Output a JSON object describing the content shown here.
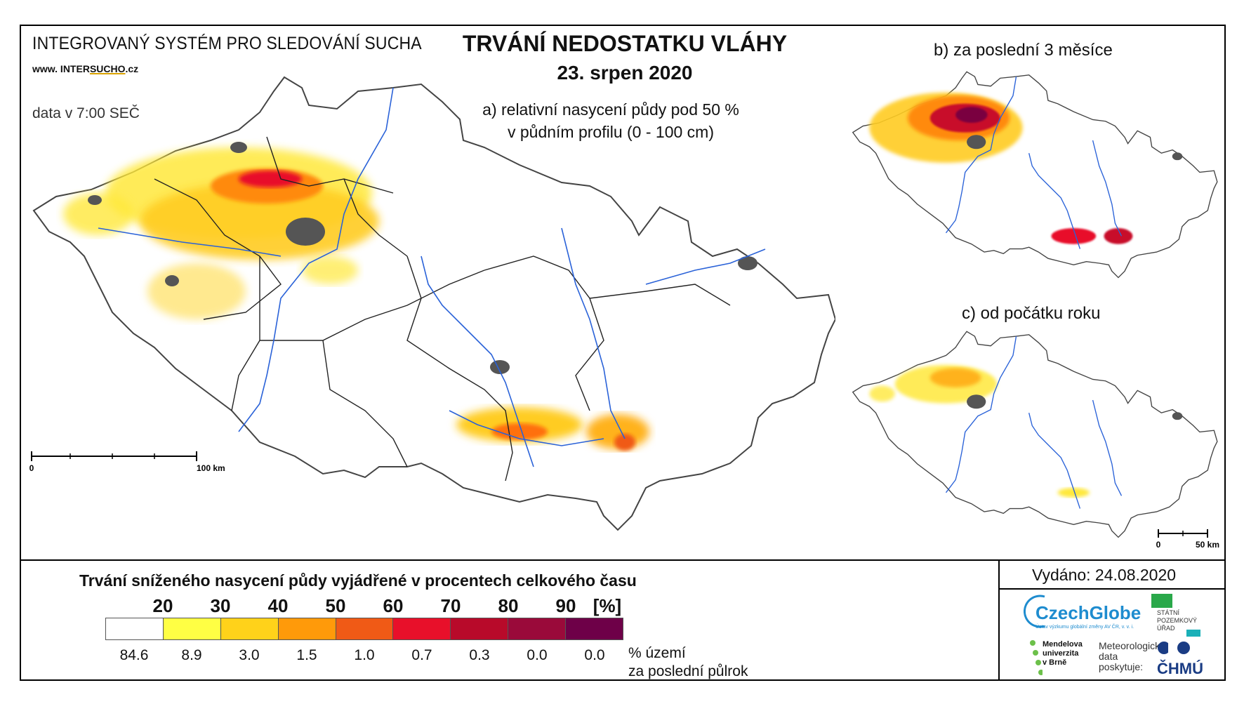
{
  "header": {
    "system_title": "INTEGROVANÝ SYSTÉM PRO SLEDOVÁNÍ SUCHA",
    "url_prefix": "www. INTER",
    "url_brand": "SUCHO",
    "url_suffix": ".cz",
    "data_time": "data v 7:00 SEČ",
    "main_title": "TRVÁNÍ NEDOSTATKU VLÁHY",
    "date": "23. srpen 2020"
  },
  "maps": {
    "a": {
      "caption_line1": "a) relativní nasycení půdy pod 50 %",
      "caption_line2": "v půdním profilu (0 - 100 cm)",
      "scale_start": "0",
      "scale_end": "100 km"
    },
    "b": {
      "caption": "b) za poslední 3 měsíce"
    },
    "c": {
      "caption": "c) od počátku roku",
      "scale_start": "0",
      "scale_end": "50 km"
    }
  },
  "legend": {
    "title": "Trvání sníženého nasycení půdy vyjádřené v procentech celkového času",
    "thresholds": [
      "20",
      "30",
      "40",
      "50",
      "60",
      "70",
      "80",
      "90",
      "[%]"
    ],
    "colors": [
      "#ffffff",
      "#ffff44",
      "#ffd21a",
      "#ff9a0a",
      "#f05a16",
      "#e8102a",
      "#b80a2a",
      "#9a0a3a",
      "#6e0048"
    ],
    "area_values": [
      "84.6",
      "8.9",
      "3.0",
      "1.5",
      "1.0",
      "0.7",
      "0.3",
      "0.0",
      "0.0"
    ],
    "area_unit_line1": "% území",
    "area_unit_line2": "za poslední půlrok"
  },
  "footer": {
    "issued": "Vydáno: 24.08.2020",
    "czechglobe": "CzechGlobe",
    "czechglobe_sub": "Ústav výzkumu globální změny AV ČR, v. v. i.",
    "spu_line1": "STÁTNÍ",
    "spu_line2": "POZEMKOVÝ",
    "spu_line3": "ÚŘAD",
    "mendel_line1": "Mendelova",
    "mendel_line2": "univerzita",
    "mendel_line3": "v Brně",
    "meteo_line1": "Meteorologická",
    "meteo_line2": "data",
    "meteo_line3": "poskytuje:",
    "chmu": "ČHMÚ"
  }
}
